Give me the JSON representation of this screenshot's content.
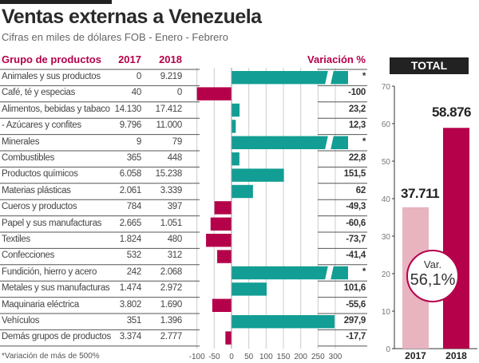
{
  "header": {
    "title": "Ventas externas a Venezuela",
    "subtitle": "Cifras en miles de dólares FOB - Enero - Febrero"
  },
  "table": {
    "col_group": "Grupo de productos",
    "col_2017": "2017",
    "col_2018": "2018",
    "col_var": "Variación %",
    "rows": [
      {
        "name": "Animales y sus productos",
        "v2017": "0",
        "v2018": "9.219",
        "var_label": "*",
        "var": null
      },
      {
        "name": "Café, té y especias",
        "v2017": "40",
        "v2018": "0",
        "var_label": "-100",
        "var": -100
      },
      {
        "name": "Alimentos, bebidas y tabaco",
        "v2017": "14.130",
        "v2018": "17.412",
        "var_label": "23,2",
        "var": 23.2
      },
      {
        "name": "- Azúcares y confites",
        "v2017": "9.796",
        "v2018": "11.000",
        "var_label": "12,3",
        "var": 12.3
      },
      {
        "name": "Minerales",
        "v2017": "9",
        "v2018": "79",
        "var_label": "*",
        "var": null
      },
      {
        "name": "Combustibles",
        "v2017": "365",
        "v2018": "448",
        "var_label": "22,8",
        "var": 22.8
      },
      {
        "name": "Productos químicos",
        "v2017": "6.058",
        "v2018": "15.238",
        "var_label": "151,5",
        "var": 151.5
      },
      {
        "name": "Materias plásticas",
        "v2017": "2.061",
        "v2018": "3.339",
        "var_label": "62",
        "var": 62
      },
      {
        "name": "Cueros y productos",
        "v2017": "784",
        "v2018": "397",
        "var_label": "-49,3",
        "var": -49.3
      },
      {
        "name": "Papel y sus manufacturas",
        "v2017": "2.665",
        "v2018": "1.051",
        "var_label": "-60,6",
        "var": -60.6
      },
      {
        "name": "Textiles",
        "v2017": "1.824",
        "v2018": "480",
        "var_label": "-73,7",
        "var": -73.7
      },
      {
        "name": "Confecciones",
        "v2017": "532",
        "v2018": "312",
        "var_label": "-41,4",
        "var": -41.4
      },
      {
        "name": "Fundición, hierro y acero",
        "v2017": "242",
        "v2018": "2.068",
        "var_label": "*",
        "var": null
      },
      {
        "name": "Metales y sus manufacturas",
        "v2017": "1.474",
        "v2018": "2.972",
        "var_label": "101,6",
        "var": 101.6
      },
      {
        "name": "Maquinaria eléctrica",
        "v2017": "3.802",
        "v2018": "1.690",
        "var_label": "-55,6",
        "var": -55.6
      },
      {
        "name": "Vehículos",
        "v2017": "351",
        "v2018": "1.396",
        "var_label": "297,9",
        "var": 297.9
      },
      {
        "name": "Demás grupos de productos",
        "v2017": "3.374",
        "v2018": "2.777",
        "var_label": "-17,7",
        "var": -17.7
      }
    ],
    "footnote": "*Variación de más de 500%"
  },
  "chart_data": [
    {
      "type": "bar",
      "orientation": "horizontal",
      "title": "Variación %",
      "xlim": [
        -100,
        300
      ],
      "xticks": [
        "-100",
        "-50",
        "0",
        "50",
        "100",
        "150",
        "200",
        "250",
        "300"
      ],
      "note": "* bars broken: variation above 500%",
      "colors": {
        "positive": "#129e94",
        "negative": "#b5004a"
      }
    },
    {
      "type": "bar",
      "title": "TOTAL",
      "categories": [
        "2017",
        "2018"
      ],
      "values": [
        37.711,
        58.876
      ],
      "value_labels": [
        "37.711",
        "58.876"
      ],
      "ylim": [
        0,
        70
      ],
      "yticks": [
        "0",
        "10",
        "20",
        "30",
        "40",
        "50",
        "60",
        "70"
      ],
      "colors": [
        "#e8b4bf",
        "#b5004a"
      ],
      "annotation": {
        "line1": "Var.",
        "line2": "56,1%"
      }
    }
  ]
}
